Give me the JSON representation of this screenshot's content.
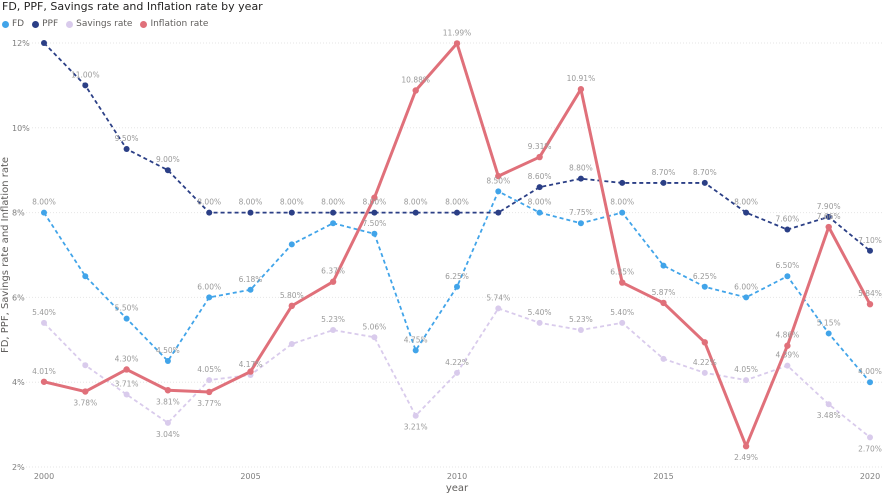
{
  "chart_data": {
    "type": "line",
    "title": "FD, PPF, Savings rate and Inflation rate by year",
    "xlabel": "year",
    "ylabel": "FD, PPF, Savings rate and Inflation rate",
    "ylim": [
      2,
      12
    ],
    "y_ticks": [
      2,
      4,
      6,
      8,
      10,
      12
    ],
    "y_tick_labels": [
      "2%",
      "4%",
      "6%",
      "8%",
      "10%",
      "12%"
    ],
    "x_ticks": [
      2000,
      2005,
      2010,
      2015,
      2020
    ],
    "x_tick_labels": [
      "2000",
      "2005",
      "2010",
      "2015",
      "2020"
    ],
    "x": [
      2000,
      2001,
      2002,
      2003,
      2004,
      2005,
      2006,
      2007,
      2008,
      2009,
      2010,
      2011,
      2012,
      2013,
      2014,
      2015,
      2016,
      2017,
      2018,
      2019,
      2020
    ],
    "series": [
      {
        "name": "FD",
        "color": "#41a4e9",
        "dashed": true,
        "values": [
          8.0,
          6.5,
          5.5,
          4.5,
          6.0,
          6.18,
          7.25,
          7.75,
          7.5,
          4.75,
          6.25,
          8.5,
          8.0,
          7.75,
          8.0,
          6.75,
          6.25,
          6.0,
          6.5,
          5.15,
          4.0
        ],
        "labels": [
          "8.00%",
          "",
          "5.50%",
          "4.50%",
          "6.00%",
          "6.18%",
          "",
          "",
          "7.50%",
          "4.75%",
          "6.25%",
          "8.50%",
          "8.00%",
          "7.75%",
          "8.00%",
          "",
          "6.25%",
          "6.00%",
          "6.50%",
          "5.15%",
          "4.00%"
        ]
      },
      {
        "name": "PPF",
        "color": "#2b3f86",
        "dashed": true,
        "values": [
          12.0,
          11.0,
          9.5,
          9.0,
          8.0,
          8.0,
          8.0,
          8.0,
          8.0,
          8.0,
          8.0,
          8.0,
          8.6,
          8.8,
          8.7,
          8.7,
          8.7,
          8.0,
          7.6,
          7.9,
          7.1
        ],
        "labels": [
          "",
          "11.00%",
          "9.50%",
          "9.00%",
          "8.00%",
          "8.00%",
          "8.00%",
          "8.00%",
          "8.00%",
          "8.00%",
          "8.00%",
          "",
          "8.60%",
          "8.80%",
          "",
          "8.70%",
          "8.70%",
          "8.00%",
          "7.60%",
          "7.90%",
          "7.10%"
        ]
      },
      {
        "name": "Savings rate",
        "color": "#d9cbec",
        "dashed": true,
        "values": [
          5.4,
          4.4,
          3.71,
          3.04,
          4.05,
          4.17,
          4.9,
          5.23,
          5.06,
          3.21,
          4.22,
          5.74,
          5.4,
          5.23,
          5.4,
          4.55,
          4.22,
          4.05,
          4.39,
          3.48,
          2.7
        ],
        "labels": [
          "5.40%",
          "",
          "3.71%",
          "3.04%",
          "4.05%",
          "4.17%",
          "",
          "5.23%",
          "5.06%",
          "3.21%",
          "4.22%",
          "5.74%",
          "5.40%",
          "5.23%",
          "5.40%",
          "",
          "4.22%",
          "4.05%",
          "4.39%",
          "3.48%",
          "2.70%"
        ]
      },
      {
        "name": "Inflation rate",
        "color": "#e0707a",
        "dashed": false,
        "values": [
          4.01,
          3.78,
          4.3,
          3.81,
          3.77,
          4.25,
          5.8,
          6.37,
          8.35,
          10.88,
          11.99,
          8.86,
          9.31,
          10.91,
          6.35,
          5.87,
          4.94,
          2.49,
          4.86,
          7.66,
          5.84
        ],
        "labels": [
          "4.01%",
          "3.78%",
          "4.30%",
          "3.81%",
          "3.77%",
          "",
          "5.80%",
          "6.37%",
          "",
          "10.88%",
          "11.99%",
          "",
          "9.31%",
          "10.91%",
          "6.35%",
          "5.87%",
          "",
          "2.49%",
          "4.86%",
          "7.66%",
          "5.84%"
        ]
      }
    ]
  }
}
